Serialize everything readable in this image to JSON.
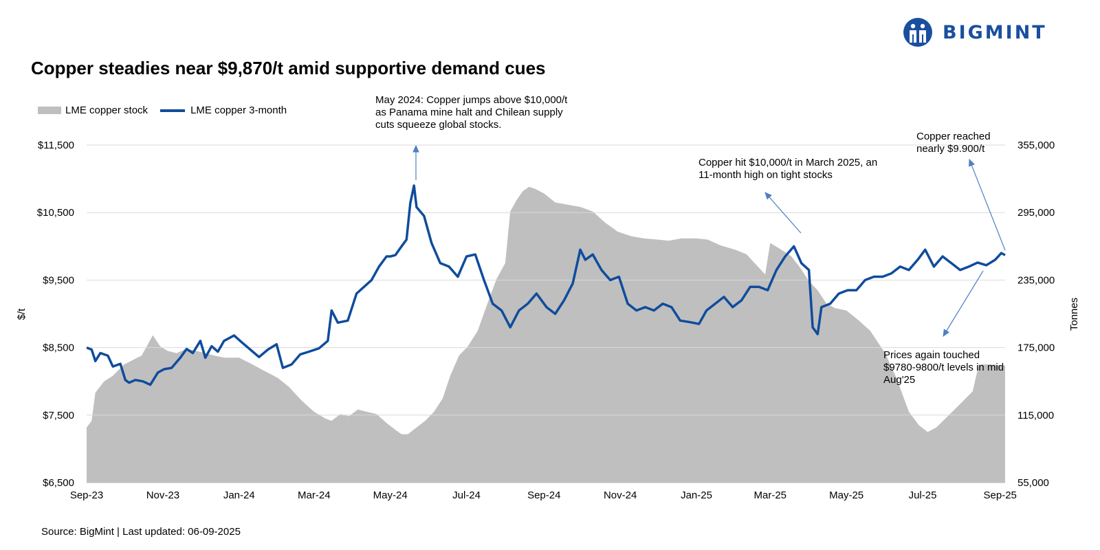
{
  "brand": {
    "logo_text": "BIGMINT",
    "brand_color": "#1a4fa0"
  },
  "title": "Copper steadies near $9,870/t amid supportive demand cues",
  "source": "Source: BigMint | Last updated: 06-09-2025",
  "colors": {
    "price_line": "#0f4c9c",
    "stock_area": "#bfbfbf",
    "gridline": "#d9d9d9",
    "annotation_arrow": "#4f7fc5"
  },
  "chart_data": {
    "type": "line",
    "title": "Copper steadies near $9,870/t amid supportive demand cues",
    "legend": {
      "placement": "top-left",
      "entries": [
        "LME copper stock",
        "LME copper 3-month"
      ]
    },
    "xlabel": "",
    "ylabel": "$/t",
    "y2label": "Tonnes",
    "x_range": [
      "2023-09-01",
      "2025-09-05"
    ],
    "x_ticks": [
      "Sep-23",
      "Nov-23",
      "Jan-24",
      "Mar-24",
      "May-24",
      "Jul-24",
      "Sep-24",
      "Nov-24",
      "Jan-25",
      "Mar-25",
      "May-25",
      "Jul-25",
      "Sep-25"
    ],
    "x_tick_dates": [
      "2023-09-01",
      "2023-11-01",
      "2024-01-01",
      "2024-03-01",
      "2024-05-01",
      "2024-07-01",
      "2024-09-01",
      "2024-11-01",
      "2025-01-01",
      "2025-03-01",
      "2025-05-01",
      "2025-07-01",
      "2025-09-01"
    ],
    "ylim": [
      6500,
      11500
    ],
    "y_ticks": [
      "$6,500",
      "$7,500",
      "$8,500",
      "$9,500",
      "$10,500",
      "$11,500"
    ],
    "y_tick_values": [
      6500,
      7500,
      8500,
      9500,
      10500,
      11500
    ],
    "y2lim": [
      55000,
      355000
    ],
    "y2_ticks": [
      "55,000",
      "115,000",
      "175,000",
      "235,000",
      "295,000",
      "355,000"
    ],
    "y2_tick_values": [
      55000,
      115000,
      175000,
      235000,
      295000,
      355000
    ],
    "grid": true,
    "series": [
      {
        "name": "LME copper stock",
        "kind": "area",
        "axis": "right",
        "points": [
          [
            "2023-09-01",
            104000
          ],
          [
            "2023-09-05",
            110000
          ],
          [
            "2023-09-08",
            135000
          ],
          [
            "2023-09-15",
            145000
          ],
          [
            "2023-09-22",
            150000
          ],
          [
            "2023-10-01",
            160000
          ],
          [
            "2023-10-08",
            164000
          ],
          [
            "2023-10-15",
            168000
          ],
          [
            "2023-10-20",
            178000
          ],
          [
            "2023-10-24",
            186000
          ],
          [
            "2023-10-30",
            176000
          ],
          [
            "2023-11-05",
            172000
          ],
          [
            "2023-11-12",
            170000
          ],
          [
            "2023-11-20",
            174000
          ],
          [
            "2023-11-28",
            172000
          ],
          [
            "2023-12-05",
            170000
          ],
          [
            "2023-12-12",
            168000
          ],
          [
            "2023-12-20",
            166000
          ],
          [
            "2024-01-01",
            166000
          ],
          [
            "2024-01-10",
            161000
          ],
          [
            "2024-01-20",
            155000
          ],
          [
            "2024-02-01",
            148000
          ],
          [
            "2024-02-10",
            140000
          ],
          [
            "2024-02-20",
            128000
          ],
          [
            "2024-03-01",
            118000
          ],
          [
            "2024-03-10",
            112000
          ],
          [
            "2024-03-15",
            110000
          ],
          [
            "2024-03-22",
            116000
          ],
          [
            "2024-03-29",
            114000
          ],
          [
            "2024-04-05",
            120000
          ],
          [
            "2024-04-12",
            118000
          ],
          [
            "2024-04-20",
            116000
          ],
          [
            "2024-04-28",
            108000
          ],
          [
            "2024-05-05",
            102000
          ],
          [
            "2024-05-10",
            98000
          ],
          [
            "2024-05-15",
            98000
          ],
          [
            "2024-05-22",
            104000
          ],
          [
            "2024-05-29",
            110000
          ],
          [
            "2024-06-05",
            118000
          ],
          [
            "2024-06-12",
            130000
          ],
          [
            "2024-06-18",
            150000
          ],
          [
            "2024-06-25",
            168000
          ],
          [
            "2024-07-02",
            176000
          ],
          [
            "2024-07-10",
            190000
          ],
          [
            "2024-07-18",
            215000
          ],
          [
            "2024-07-25",
            236000
          ],
          [
            "2024-08-01",
            250000
          ],
          [
            "2024-08-05",
            296000
          ],
          [
            "2024-08-10",
            306000
          ],
          [
            "2024-08-15",
            314000
          ],
          [
            "2024-08-20",
            318000
          ],
          [
            "2024-08-25",
            316000
          ],
          [
            "2024-09-01",
            312000
          ],
          [
            "2024-09-10",
            304000
          ],
          [
            "2024-09-20",
            302000
          ],
          [
            "2024-09-30",
            300000
          ],
          [
            "2024-10-10",
            296000
          ],
          [
            "2024-10-20",
            286000
          ],
          [
            "2024-10-30",
            278000
          ],
          [
            "2024-11-10",
            274000
          ],
          [
            "2024-11-20",
            272000
          ],
          [
            "2024-12-01",
            271000
          ],
          [
            "2024-12-10",
            270000
          ],
          [
            "2024-12-20",
            272000
          ],
          [
            "2025-01-01",
            272000
          ],
          [
            "2025-01-10",
            271000
          ],
          [
            "2025-01-20",
            266000
          ],
          [
            "2025-02-01",
            262000
          ],
          [
            "2025-02-10",
            258000
          ],
          [
            "2025-02-20",
            246000
          ],
          [
            "2025-02-25",
            240000
          ],
          [
            "2025-03-01",
            268000
          ],
          [
            "2025-03-10",
            262000
          ],
          [
            "2025-03-18",
            256000
          ],
          [
            "2025-03-25",
            246000
          ],
          [
            "2025-04-01",
            234000
          ],
          [
            "2025-04-08",
            226000
          ],
          [
            "2025-04-15",
            214000
          ],
          [
            "2025-04-22",
            210000
          ],
          [
            "2025-05-01",
            208000
          ],
          [
            "2025-05-10",
            200000
          ],
          [
            "2025-05-20",
            190000
          ],
          [
            "2025-06-01",
            170000
          ],
          [
            "2025-06-10",
            148000
          ],
          [
            "2025-06-20",
            118000
          ],
          [
            "2025-06-28",
            106000
          ],
          [
            "2025-07-05",
            100000
          ],
          [
            "2025-07-12",
            104000
          ],
          [
            "2025-07-22",
            115000
          ],
          [
            "2025-08-01",
            126000
          ],
          [
            "2025-08-10",
            136000
          ],
          [
            "2025-08-15",
            160000
          ],
          [
            "2025-08-25",
            160000
          ],
          [
            "2025-09-05",
            159000
          ]
        ]
      },
      {
        "name": "LME copper 3-month",
        "kind": "line",
        "axis": "left",
        "points": [
          [
            "2023-09-01",
            8500
          ],
          [
            "2023-09-05",
            8470
          ],
          [
            "2023-09-08",
            8300
          ],
          [
            "2023-09-12",
            8420
          ],
          [
            "2023-09-18",
            8380
          ],
          [
            "2023-09-22",
            8220
          ],
          [
            "2023-09-28",
            8260
          ],
          [
            "2023-10-02",
            8020
          ],
          [
            "2023-10-05",
            7980
          ],
          [
            "2023-10-10",
            8020
          ],
          [
            "2023-10-16",
            8000
          ],
          [
            "2023-10-22",
            7950
          ],
          [
            "2023-10-28",
            8130
          ],
          [
            "2023-11-02",
            8180
          ],
          [
            "2023-11-08",
            8200
          ],
          [
            "2023-11-15",
            8350
          ],
          [
            "2023-11-20",
            8480
          ],
          [
            "2023-11-25",
            8420
          ],
          [
            "2023-12-01",
            8600
          ],
          [
            "2023-12-05",
            8350
          ],
          [
            "2023-12-10",
            8520
          ],
          [
            "2023-12-15",
            8440
          ],
          [
            "2023-12-20",
            8600
          ],
          [
            "2023-12-28",
            8680
          ],
          [
            "2024-01-03",
            8580
          ],
          [
            "2024-01-10",
            8470
          ],
          [
            "2024-01-17",
            8360
          ],
          [
            "2024-01-24",
            8470
          ],
          [
            "2024-01-31",
            8550
          ],
          [
            "2024-02-05",
            8200
          ],
          [
            "2024-02-12",
            8250
          ],
          [
            "2024-02-19",
            8400
          ],
          [
            "2024-02-26",
            8440
          ],
          [
            "2024-03-05",
            8490
          ],
          [
            "2024-03-12",
            8600
          ],
          [
            "2024-03-15",
            9050
          ],
          [
            "2024-03-20",
            8870
          ],
          [
            "2024-03-28",
            8900
          ],
          [
            "2024-04-04",
            9300
          ],
          [
            "2024-04-10",
            9400
          ],
          [
            "2024-04-16",
            9500
          ],
          [
            "2024-04-22",
            9700
          ],
          [
            "2024-04-28",
            9850
          ],
          [
            "2024-05-01",
            9850
          ],
          [
            "2024-05-05",
            9870
          ],
          [
            "2024-05-10",
            10000
          ],
          [
            "2024-05-14",
            10100
          ],
          [
            "2024-05-17",
            10640
          ],
          [
            "2024-05-20",
            10900
          ],
          [
            "2024-05-22",
            10580
          ],
          [
            "2024-05-28",
            10450
          ],
          [
            "2024-06-03",
            10050
          ],
          [
            "2024-06-10",
            9750
          ],
          [
            "2024-06-17",
            9700
          ],
          [
            "2024-06-24",
            9550
          ],
          [
            "2024-07-01",
            9850
          ],
          [
            "2024-07-08",
            9880
          ],
          [
            "2024-07-15",
            9500
          ],
          [
            "2024-07-22",
            9150
          ],
          [
            "2024-07-29",
            9050
          ],
          [
            "2024-08-05",
            8800
          ],
          [
            "2024-08-12",
            9050
          ],
          [
            "2024-08-19",
            9150
          ],
          [
            "2024-08-26",
            9300
          ],
          [
            "2024-09-03",
            9100
          ],
          [
            "2024-09-10",
            9000
          ],
          [
            "2024-09-17",
            9200
          ],
          [
            "2024-09-24",
            9450
          ],
          [
            "2024-09-30",
            9950
          ],
          [
            "2024-10-04",
            9800
          ],
          [
            "2024-10-10",
            9880
          ],
          [
            "2024-10-17",
            9650
          ],
          [
            "2024-10-24",
            9500
          ],
          [
            "2024-10-31",
            9550
          ],
          [
            "2024-11-07",
            9150
          ],
          [
            "2024-11-14",
            9050
          ],
          [
            "2024-11-21",
            9100
          ],
          [
            "2024-11-28",
            9050
          ],
          [
            "2024-12-05",
            9150
          ],
          [
            "2024-12-12",
            9100
          ],
          [
            "2024-12-19",
            8900
          ],
          [
            "2024-12-26",
            8880
          ],
          [
            "2025-01-03",
            8850
          ],
          [
            "2025-01-09",
            9050
          ],
          [
            "2025-01-16",
            9150
          ],
          [
            "2025-01-23",
            9250
          ],
          [
            "2025-01-30",
            9100
          ],
          [
            "2025-02-06",
            9200
          ],
          [
            "2025-02-13",
            9400
          ],
          [
            "2025-02-20",
            9400
          ],
          [
            "2025-02-27",
            9350
          ],
          [
            "2025-03-06",
            9650
          ],
          [
            "2025-03-13",
            9850
          ],
          [
            "2025-03-20",
            10000
          ],
          [
            "2025-03-26",
            9750
          ],
          [
            "2025-04-01",
            9650
          ],
          [
            "2025-04-04",
            8800
          ],
          [
            "2025-04-08",
            8700
          ],
          [
            "2025-04-11",
            9100
          ],
          [
            "2025-04-18",
            9150
          ],
          [
            "2025-04-25",
            9300
          ],
          [
            "2025-05-02",
            9350
          ],
          [
            "2025-05-09",
            9350
          ],
          [
            "2025-05-16",
            9500
          ],
          [
            "2025-05-23",
            9550
          ],
          [
            "2025-05-30",
            9550
          ],
          [
            "2025-06-06",
            9600
          ],
          [
            "2025-06-13",
            9700
          ],
          [
            "2025-06-20",
            9650
          ],
          [
            "2025-06-27",
            9800
          ],
          [
            "2025-07-03",
            9950
          ],
          [
            "2025-07-10",
            9700
          ],
          [
            "2025-07-17",
            9850
          ],
          [
            "2025-07-24",
            9750
          ],
          [
            "2025-07-31",
            9650
          ],
          [
            "2025-08-07",
            9700
          ],
          [
            "2025-08-14",
            9760
          ],
          [
            "2025-08-21",
            9720
          ],
          [
            "2025-08-28",
            9800
          ],
          [
            "2025-09-02",
            9900
          ],
          [
            "2025-09-05",
            9870
          ]
        ]
      }
    ],
    "annotations": [
      {
        "text": "May 2024: Copper jumps above $10,000/t as Panama mine halt and Chilean supply cuts squeeze global stocks."
      },
      {
        "text": "Copper hit $10,000/t in March 2025, an 11-month high on tight stocks"
      },
      {
        "text": "Copper reached nearly $9.900/t"
      },
      {
        "text": "Prices again touched $9780-9800/t levels in mid Aug'25"
      }
    ]
  }
}
